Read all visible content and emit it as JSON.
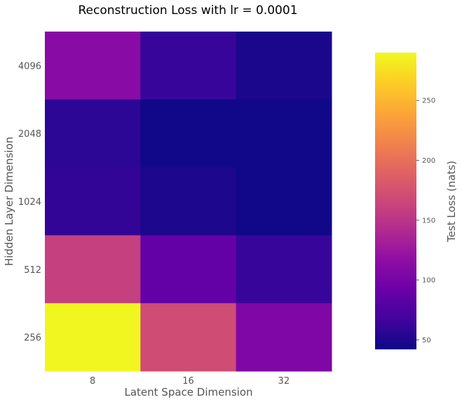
{
  "chart_data": {
    "type": "heatmap",
    "title": "Reconstruction Loss with lr = 0.0001",
    "xlabel": "Latent Space Dimension",
    "ylabel": "Hidden Layer Dimension",
    "x_categories": [
      "8",
      "16",
      "32"
    ],
    "y_categories": [
      "4096",
      "2048",
      "1024",
      "512",
      "256"
    ],
    "values": [
      [
        112,
        62,
        48
      ],
      [
        57,
        44,
        44
      ],
      [
        60,
        49,
        44
      ],
      [
        160,
        88,
        62
      ],
      [
        288,
        170,
        105
      ]
    ],
    "colormap": "plasma",
    "colorbar": {
      "label": "Test Loss (nats)",
      "vmin": 42,
      "vmax": 290,
      "ticks": [
        50,
        100,
        150,
        200,
        250
      ],
      "tick_labels": [
        "50",
        "100",
        "150",
        "200",
        "250"
      ]
    }
  }
}
